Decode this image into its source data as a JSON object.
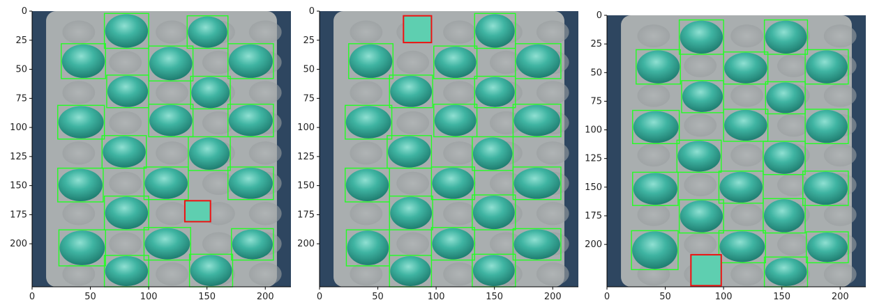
{
  "figure": {
    "colors": {
      "background_dark": "#2e4660",
      "tray": "#a9aeaf",
      "tray_cell": "#9ea3a4",
      "apple_base": "#2f9f8f",
      "apple_highlight": "#7fd6c8",
      "detected_box": "#22ff22",
      "missing_box": "#ee1111",
      "missing_fill": "#5ecfb0"
    },
    "panels": [
      {
        "x_ticks": [
          "0",
          "50",
          "100",
          "150",
          "200"
        ],
        "y_ticks": [
          "0",
          "25",
          "50",
          "75",
          "100",
          "125",
          "150",
          "175",
          "200"
        ],
        "missing_count": 1,
        "detected_count": 23
      },
      {
        "x_ticks": [
          "0",
          "50",
          "100",
          "150",
          "200"
        ],
        "y_ticks": [
          "0",
          "25",
          "50",
          "75",
          "100",
          "125",
          "150",
          "175",
          "200"
        ],
        "missing_count": 1,
        "detected_count": 23
      },
      {
        "x_ticks": [
          "0",
          "50",
          "100",
          "150",
          "200"
        ],
        "y_ticks": [
          "0",
          "25",
          "50",
          "75",
          "100",
          "125",
          "150",
          "175",
          "200"
        ],
        "missing_count": 1,
        "detected_count": 23
      }
    ]
  }
}
